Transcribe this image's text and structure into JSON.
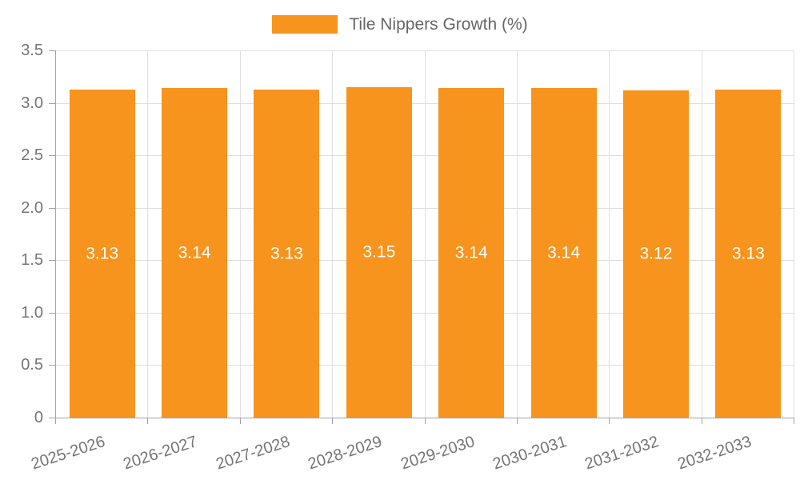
{
  "legend": {
    "label": "Tile Nippers Growth (%)",
    "swatch_color": "#F7941E"
  },
  "chart_data": {
    "type": "bar",
    "title": "Tile Nippers Growth (%)",
    "categories": [
      "2025-2026",
      "2026-2027",
      "2027-2028",
      "2028-2029",
      "2029-2030",
      "2030-2031",
      "2031-2032",
      "2032-2033"
    ],
    "series": [
      {
        "name": "Tile Nippers Growth (%)",
        "values": [
          3.13,
          3.14,
          3.13,
          3.15,
          3.14,
          3.14,
          3.12,
          3.13
        ]
      }
    ],
    "bar_labels": [
      "3.13",
      "3.14",
      "3.13",
      "3.15",
      "3.14",
      "3.14",
      "3.12",
      "3.13"
    ],
    "xlabel": "",
    "ylabel": "",
    "ylim": [
      0,
      3.5
    ],
    "ytick_interval": 0.5,
    "yticks": [
      {
        "value": 3.5,
        "label": "3.5"
      },
      {
        "value": 3.0,
        "label": "3.0"
      },
      {
        "value": 2.5,
        "label": "2.5"
      },
      {
        "value": 2.0,
        "label": "2.0"
      },
      {
        "value": 1.5,
        "label": "1.5"
      },
      {
        "value": 1.0,
        "label": "1.0"
      },
      {
        "value": 0.5,
        "label": "0.5"
      },
      {
        "value": 0.0,
        "label": "0"
      }
    ],
    "grid": true,
    "legend_position": "top",
    "x_label_rotation_deg": -18,
    "colors": {
      "bar": "#F7941E",
      "grid": "#E0E0E0",
      "axis": "#A3A3A3",
      "axis_text": "#757575",
      "legend_text": "#666666",
      "value_label": "#FFFFFF"
    }
  }
}
